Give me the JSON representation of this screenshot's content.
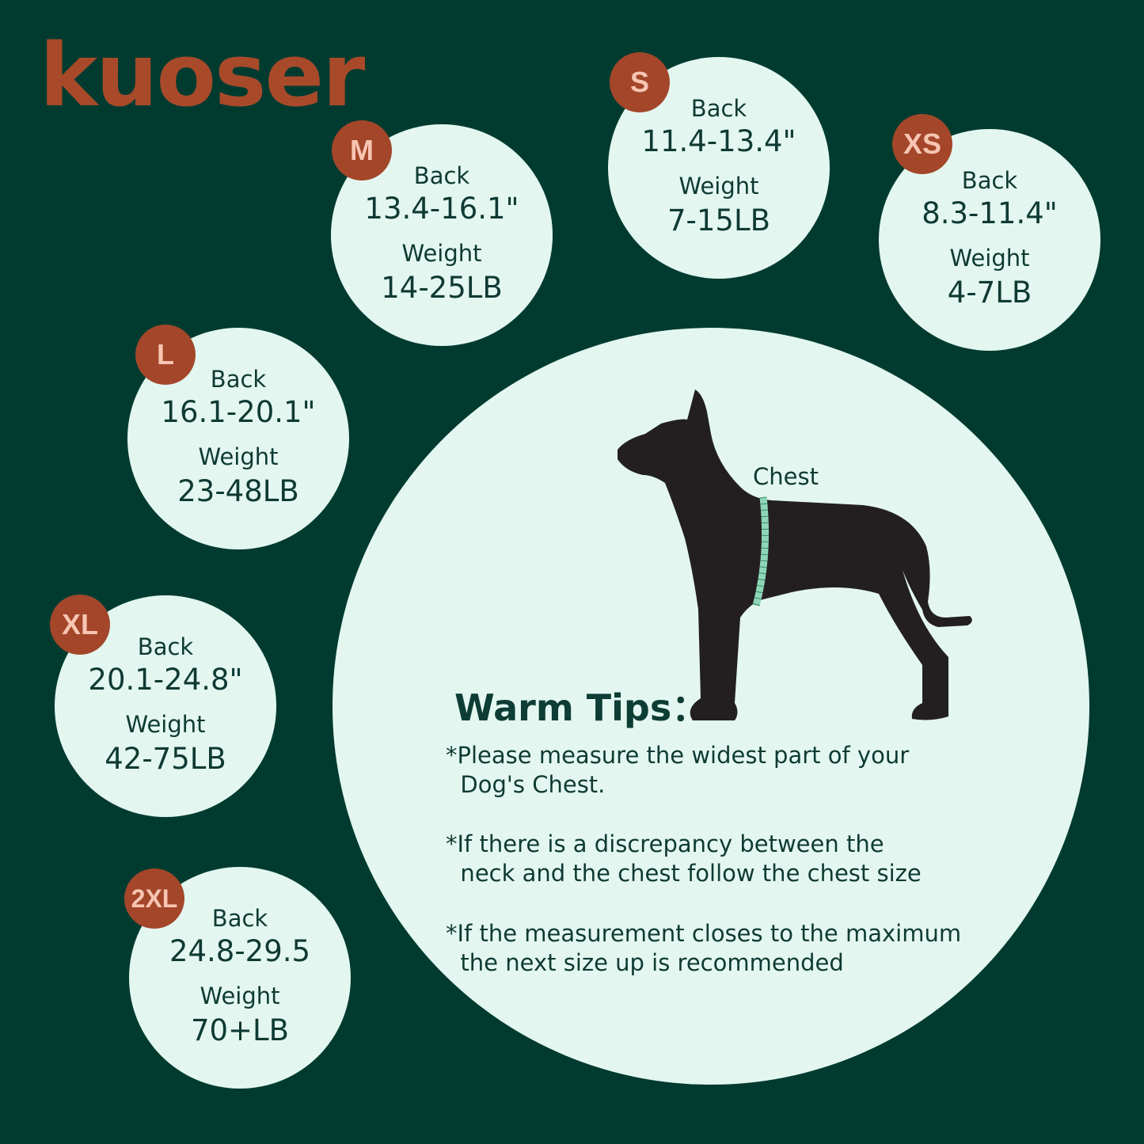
{
  "brand": {
    "logo_text": "kuoser",
    "color": "#a84a2a"
  },
  "colors": {
    "background": "#013b30",
    "circle": "#e3f7f0",
    "badge": "#a3462a",
    "badge_text": "#f7c5b2",
    "dog": "#231f20",
    "tape": "#8fd6b8"
  },
  "sizes": [
    {
      "size": "M",
      "back_label": "Back",
      "back": "13.4-16.1\"",
      "weight_label": "Weight",
      "weight": "14-25LB"
    },
    {
      "size": "S",
      "back_label": "Back",
      "back": "11.4-13.4\"",
      "weight_label": "Weight",
      "weight": "7-15LB"
    },
    {
      "size": "XS",
      "back_label": "Back",
      "back": "8.3-11.4\"",
      "weight_label": "Weight",
      "weight": "4-7LB"
    },
    {
      "size": "L",
      "back_label": "Back",
      "back": "16.1-20.1\"",
      "weight_label": "Weight",
      "weight": "23-48LB"
    },
    {
      "size": "XL",
      "back_label": "Back",
      "back": "20.1-24.8\"",
      "weight_label": "Weight",
      "weight": "42-75LB"
    },
    {
      "size": "2XL",
      "back_label": "Back",
      "back": "24.8-29.5",
      "weight_label": "Weight",
      "weight": "70+LB"
    }
  ],
  "diagram": {
    "chest_label": "Chest",
    "dog_icon": "dog-silhouette-icon",
    "tape_icon": "measuring-tape-icon"
  },
  "tips": {
    "title": "Warm Tips：",
    "items": [
      "*Please measure the widest part of your\n  Dog's Chest.",
      "*If there is a discrepancy between the\n  neck and the chest follow the chest size",
      "*If the measurement closes to the maximum\n  the next size up is recommended"
    ]
  }
}
